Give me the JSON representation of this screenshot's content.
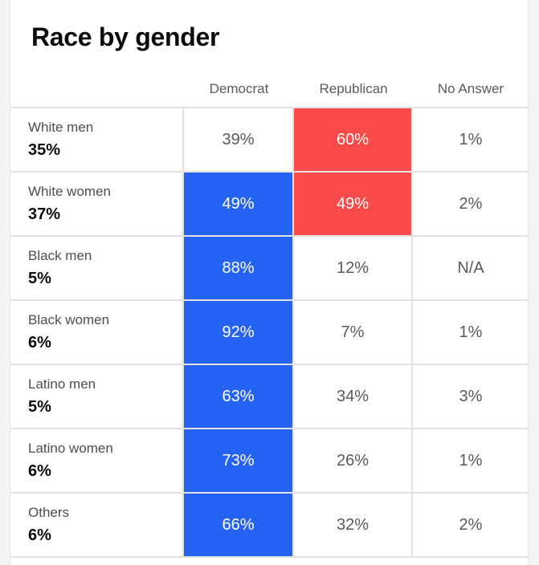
{
  "colors": {
    "democrat": "#2563f5",
    "republican": "#fa4a4a"
  },
  "chart_data": {
    "type": "table",
    "title": "Race by gender",
    "columns": [
      "Democrat",
      "Republican",
      "No Answer"
    ],
    "rows": [
      {
        "group": "White men",
        "share": "35%",
        "democrat": "39%",
        "republican": "60%",
        "no_answer": "1%",
        "winner": "republican"
      },
      {
        "group": "White women",
        "share": "37%",
        "democrat": "49%",
        "republican": "49%",
        "no_answer": "2%",
        "winner": "both"
      },
      {
        "group": "Black men",
        "share": "5%",
        "democrat": "88%",
        "republican": "12%",
        "no_answer": "N/A",
        "winner": "democrat"
      },
      {
        "group": "Black women",
        "share": "6%",
        "democrat": "92%",
        "republican": "7%",
        "no_answer": "1%",
        "winner": "democrat"
      },
      {
        "group": "Latino men",
        "share": "5%",
        "democrat": "63%",
        "republican": "34%",
        "no_answer": "3%",
        "winner": "democrat"
      },
      {
        "group": "Latino women",
        "share": "6%",
        "democrat": "73%",
        "republican": "26%",
        "no_answer": "1%",
        "winner": "democrat"
      },
      {
        "group": "Others",
        "share": "6%",
        "democrat": "66%",
        "republican": "32%",
        "no_answer": "2%",
        "winner": "democrat"
      }
    ]
  }
}
